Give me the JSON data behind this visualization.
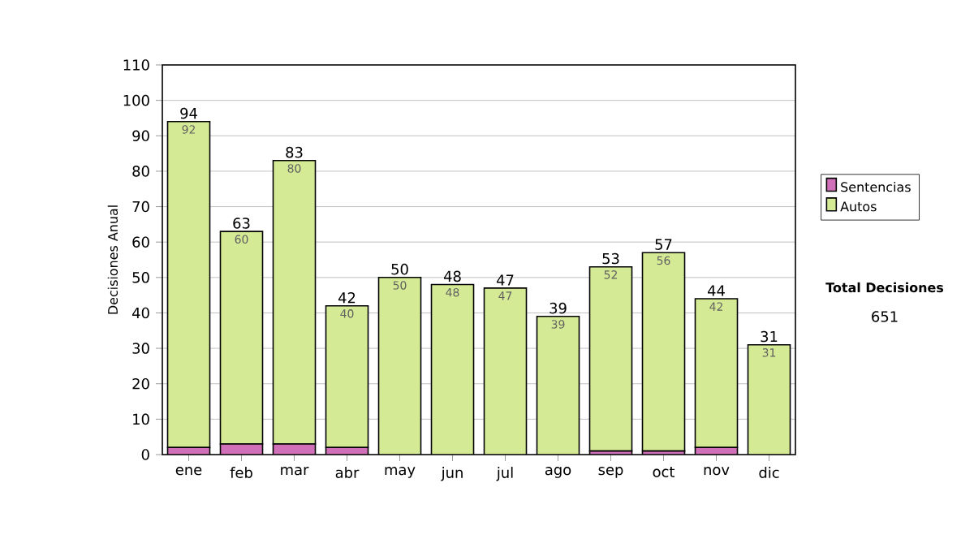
{
  "chart_data": {
    "type": "bar",
    "stacked": true,
    "ylabel": "Decisiones Anual",
    "categories": [
      "ene",
      "feb",
      "mar",
      "abr",
      "may",
      "jun",
      "jul",
      "ago",
      "sep",
      "oct",
      "nov",
      "dic"
    ],
    "series": [
      {
        "name": "Sentencias",
        "color": "#d070b8",
        "values": [
          2,
          3,
          3,
          2,
          0,
          0,
          0,
          0,
          1,
          1,
          2,
          0
        ]
      },
      {
        "name": "Autos",
        "color": "#d4ea95",
        "values": [
          92,
          60,
          80,
          40,
          50,
          48,
          47,
          39,
          52,
          56,
          42,
          31
        ],
        "value_labels": [
          "92",
          "60",
          "80",
          "40",
          "50",
          "48",
          "47",
          "39",
          "52",
          "56",
          "42",
          "31"
        ]
      }
    ],
    "totals": [
      "94",
      "63",
      "83",
      "42",
      "50",
      "48",
      "47",
      "39",
      "53",
      "57",
      "44",
      "31"
    ],
    "ylim": [
      0,
      110
    ],
    "yticks": [
      0,
      10,
      20,
      30,
      40,
      50,
      60,
      70,
      80,
      90,
      100,
      110
    ],
    "grid": "y",
    "legend": "right",
    "annotations": [
      "Total Decisiones",
      "651"
    ]
  }
}
